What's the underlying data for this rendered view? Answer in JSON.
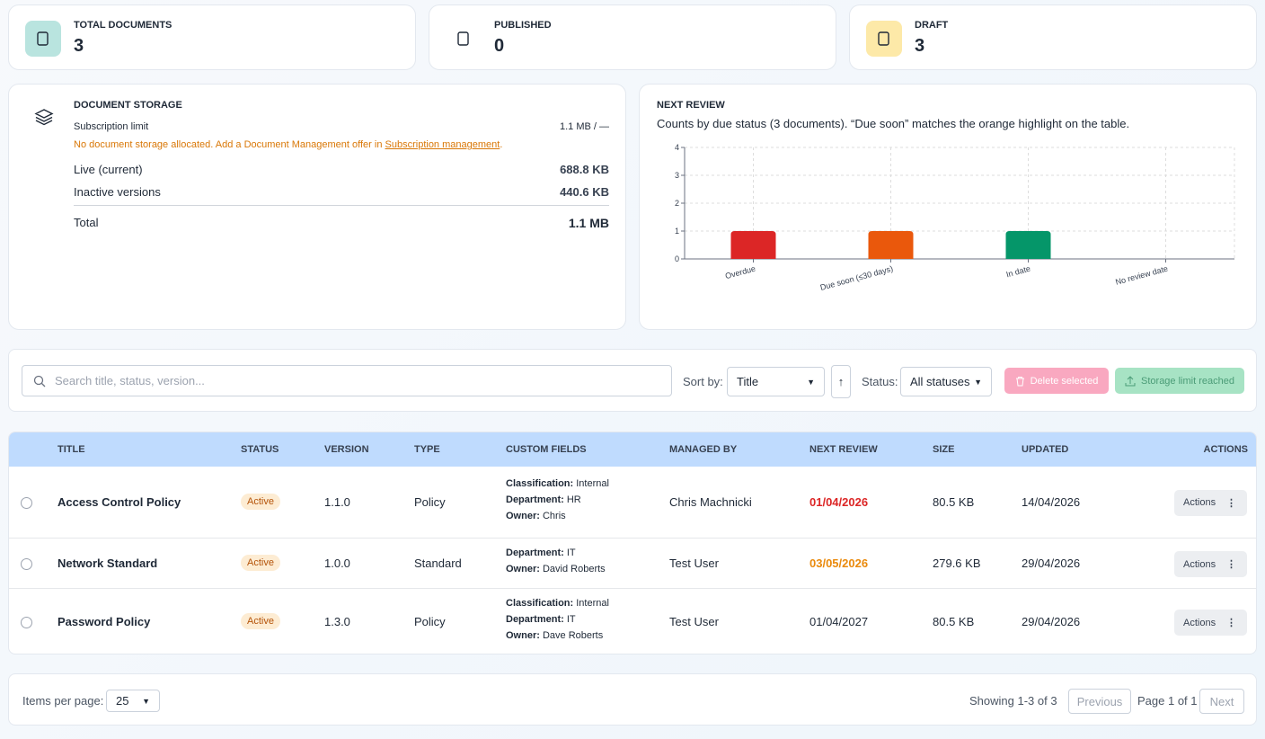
{
  "stats": [
    {
      "label": "TOTAL DOCUMENTS",
      "value": 3,
      "color": "#b9e4df"
    },
    {
      "label": "PUBLISHED",
      "value": 0,
      "color": "#ffffff"
    },
    {
      "label": "DRAFT",
      "value": 3,
      "color": "#fde9a8"
    }
  ],
  "storage": {
    "title": "DOCUMENT STORAGE",
    "limit_label": "Subscription limit",
    "limit_value": "1.1 MB / —",
    "warning": "No document storage allocated. Add a Document Management offer in ",
    "warning_link": "Subscription management",
    "warning_end": ".",
    "rows": [
      {
        "label": "Live (current)",
        "value": "688.8 KB"
      },
      {
        "label": "Inactive versions",
        "value": "440.6 KB"
      }
    ],
    "total": {
      "label": "Total",
      "value": "1.1 MB"
    }
  },
  "next_review": {
    "title": "NEXT REVIEW",
    "subtitle": "Counts by due status (3 documents). “Due soon” matches the orange highlight on the table.",
    "chart": {
      "type": "bar",
      "categories": [
        "Overdue",
        "Due soon (≤30 days)",
        "In date",
        "No review date"
      ],
      "values": [
        1,
        1,
        1,
        0
      ],
      "colors": [
        "#dc2626",
        "#ea580c",
        "#059669",
        "#6b7280"
      ],
      "ylim": [
        0,
        4
      ],
      "yticks": [
        0,
        1,
        2,
        3,
        4
      ],
      "grid": true
    }
  },
  "toolbar": {
    "search_placeholder": "Search title, status, version...",
    "sort_label": "Sort by:",
    "sort_value": "Title",
    "sort_dir": "↑",
    "status_label": "Status:",
    "status_value": "All statuses",
    "delete_label": "Delete selected",
    "storage_label": "Storage limit reached"
  },
  "table": {
    "columns": [
      "TITLE",
      "STATUS",
      "VERSION",
      "TYPE",
      "CUSTOM FIELDS",
      "MANAGED BY",
      "NEXT REVIEW",
      "SIZE",
      "UPDATED",
      "ACTIONS"
    ],
    "rows": [
      {
        "title": "Access Control Policy",
        "status": "Active",
        "version": "1.1.0",
        "type": "Policy",
        "custom_fields": [
          {
            "key": "Classification:",
            "value": "Internal"
          },
          {
            "key": "Department:",
            "value": "HR"
          },
          {
            "key": "Owner:",
            "value": "Chris"
          }
        ],
        "managed_by": "Chris Machnicki",
        "next_review": "01/04/2026",
        "review_color": "#dc2626",
        "size": "80.5 KB",
        "updated": "14/04/2026",
        "actions": "Actions"
      },
      {
        "title": "Network Standard",
        "status": "Active",
        "version": "1.0.0",
        "type": "Standard",
        "custom_fields": [
          {
            "key": "Department:",
            "value": "IT"
          },
          {
            "key": "Owner:",
            "value": "David Roberts"
          }
        ],
        "managed_by": "Test User",
        "next_review": "03/05/2026",
        "review_color": "#ea8a0c",
        "size": "279.6 KB",
        "updated": "29/04/2026",
        "actions": "Actions"
      },
      {
        "title": "Password Policy",
        "status": "Active",
        "version": "1.3.0",
        "type": "Policy",
        "custom_fields": [
          {
            "key": "Classification:",
            "value": "Internal"
          },
          {
            "key": "Department:",
            "value": "IT"
          },
          {
            "key": "Owner:",
            "value": "Dave Roberts"
          }
        ],
        "managed_by": "Test User",
        "next_review": "01/04/2027",
        "review_color": "#1f2937",
        "size": "80.5 KB",
        "updated": "29/04/2026",
        "actions": "Actions"
      }
    ]
  },
  "footer": {
    "items_label": "Items per page:",
    "items_value": 25,
    "showing": "Showing 1-3 of 3",
    "previous": "Previous",
    "page": "Page 1 of 1",
    "next": "Next"
  }
}
